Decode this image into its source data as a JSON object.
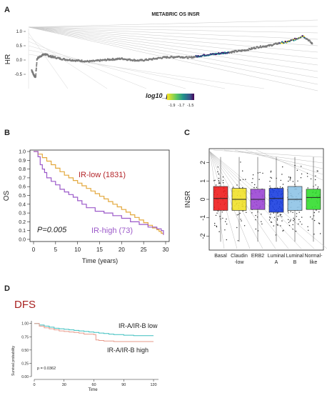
{
  "panel_labels": {
    "a": "A",
    "b": "B",
    "c": "C",
    "d": "D"
  },
  "chart_data": [
    {
      "panel": "A",
      "type": "scatter",
      "title": "METABRIC OS INSR",
      "xlabel": "",
      "ylabel": "HR",
      "y_ticks": [
        "-0.5",
        "0.0",
        "0.5",
        "1.0"
      ],
      "ylim": [
        -0.85,
        1.35
      ],
      "legend_title": "log10_p",
      "legend_ticks": [
        "-1.9",
        "-1.7",
        "-1.5"
      ],
      "colors": {
        "grey": "#7a7a7a",
        "low_p": "#3b0f70",
        "mid_p": "#21908d",
        "high_p": "#fde725"
      },
      "series": [
        {
          "x": [
            0.1,
            0.5,
            1,
            1.5,
            2,
            3,
            4,
            5,
            6,
            7,
            8,
            10,
            12,
            14,
            16,
            18,
            20,
            22,
            24,
            26,
            28,
            30,
            32,
            34,
            36,
            38,
            40,
            42,
            44,
            46,
            48,
            50,
            52,
            54,
            56,
            58,
            60,
            62,
            64,
            66,
            68,
            70,
            72,
            74,
            76,
            78,
            80,
            82,
            84,
            86,
            88,
            90,
            92,
            94,
            96,
            98,
            99.5
          ],
          "y": [
            -0.35,
            -0.45,
            -0.55,
            -0.6,
            0.05,
            0.12,
            0.18,
            0.2,
            0.15,
            0.12,
            0.1,
            0.05,
            0.02,
            0.0,
            -0.02,
            -0.03,
            -0.05,
            -0.04,
            -0.02,
            0.0,
            0.02,
            0.03,
            0.05,
            0.02,
            0.0,
            -0.02,
            0.0,
            0.02,
            0.05,
            0.08,
            0.1,
            0.1,
            0.12,
            0.1,
            0.08,
            0.12,
            0.15,
            0.18,
            0.2,
            0.22,
            0.25,
            0.27,
            0.3,
            0.32,
            0.35,
            0.4,
            0.45,
            0.48,
            0.5,
            0.55,
            0.6,
            0.62,
            0.68,
            0.75,
            0.85,
            0.7,
            0.55
          ]
        }
      ]
    },
    {
      "panel": "B",
      "type": "line",
      "title": "",
      "xlabel": "Time (years)",
      "ylabel": "OS",
      "x_ticks": [
        "0",
        "5",
        "10",
        "15",
        "20",
        "25",
        "30"
      ],
      "y_ticks": [
        "0.0",
        "0.1",
        "0.2",
        "0.3",
        "0.4",
        "0.5",
        "0.6",
        "0.7",
        "0.8",
        "0.9",
        "1.0"
      ],
      "xlim": [
        0,
        30
      ],
      "ylim": [
        0,
        1
      ],
      "annotations": {
        "p_value": "P=0.005",
        "low_label": "IR-low (1831)",
        "high_label": "IR-high (73)"
      },
      "colors": {
        "low": "#e3a83c",
        "high": "#9b59c9",
        "low_text": "#b4262a",
        "high_text": "#9b59c9"
      },
      "series": [
        {
          "name": "IR-low (1831)",
          "x": [
            0,
            1,
            2,
            3,
            4,
            5,
            6,
            7,
            8,
            9,
            10,
            11,
            12,
            13,
            14,
            15,
            16,
            17,
            18,
            19,
            20,
            21,
            22,
            23,
            24,
            25,
            26,
            27,
            28,
            28.5,
            29,
            29.5
          ],
          "y": [
            1.0,
            0.97,
            0.93,
            0.89,
            0.85,
            0.81,
            0.77,
            0.73,
            0.7,
            0.67,
            0.64,
            0.61,
            0.58,
            0.55,
            0.52,
            0.49,
            0.46,
            0.43,
            0.4,
            0.37,
            0.34,
            0.31,
            0.28,
            0.25,
            0.22,
            0.19,
            0.16,
            0.13,
            0.11,
            0.09,
            0.07,
            0.05
          ]
        },
        {
          "name": "IR-high (73)",
          "x": [
            0,
            1,
            1.5,
            2,
            2.5,
            3,
            4,
            5,
            6,
            7,
            8,
            9,
            10,
            11,
            12,
            14,
            16,
            18,
            20,
            22,
            24,
            26,
            28,
            29,
            29.5
          ],
          "y": [
            1.0,
            0.94,
            0.85,
            0.8,
            0.76,
            0.7,
            0.66,
            0.62,
            0.57,
            0.54,
            0.51,
            0.48,
            0.44,
            0.4,
            0.36,
            0.32,
            0.3,
            0.27,
            0.24,
            0.2,
            0.17,
            0.14,
            0.12,
            0.1,
            0.05
          ]
        }
      ]
    },
    {
      "panel": "C",
      "type": "box",
      "title": "",
      "xlabel": "",
      "ylabel": "INSR",
      "y_ticks": [
        "-2",
        "-1",
        "0",
        "1",
        "2"
      ],
      "ylim": [
        -2.6,
        2.6
      ],
      "categories": [
        "Basal",
        "Claudin\n-low",
        "ERB2",
        "Luminal\nA",
        "Luminal\nB",
        "Normal-\nlike"
      ],
      "colors": [
        "#ee1c1c",
        "#f1e12a",
        "#9b46d4",
        "#1a3ee0",
        "#8ec3e6",
        "#33dd2f"
      ],
      "boxes": [
        {
          "q1": -0.6,
          "median": 0.05,
          "q3": 0.7
        },
        {
          "q1": -0.6,
          "median": 0.0,
          "q3": 0.6
        },
        {
          "q1": -0.55,
          "median": 0.0,
          "q3": 0.55
        },
        {
          "q1": -0.7,
          "median": 0.05,
          "q3": 0.6
        },
        {
          "q1": -0.6,
          "median": 0.0,
          "q3": 0.7
        },
        {
          "q1": -0.55,
          "median": 0.1,
          "q3": 0.55
        }
      ]
    },
    {
      "panel": "D",
      "type": "line",
      "title": "DFS",
      "xlabel": "Time",
      "ylabel": "Survival probability",
      "x_ticks": [
        "0",
        "30",
        "60",
        "90",
        "120"
      ],
      "y_ticks": [
        "0.00",
        "0.25",
        "0.50",
        "0.75",
        "1.00"
      ],
      "xlim": [
        0,
        125
      ],
      "ylim": [
        0,
        1.05
      ],
      "annotations": {
        "p_value": "p = 0.0362",
        "low_label": "IR-A/IR-B low",
        "high_label": "IR-A/IR-B high"
      },
      "colors": {
        "low": "#3bbfbf",
        "high": "#e79a8a",
        "title": "#a8201f"
      },
      "series": [
        {
          "name": "IR-A/IR-B low",
          "x": [
            0,
            5,
            10,
            15,
            20,
            25,
            30,
            35,
            40,
            45,
            50,
            55,
            60,
            65,
            70,
            75,
            80,
            85,
            90,
            95,
            100,
            105,
            110,
            115,
            120
          ],
          "y": [
            1.0,
            0.97,
            0.95,
            0.93,
            0.91,
            0.9,
            0.89,
            0.88,
            0.87,
            0.86,
            0.85,
            0.84,
            0.83,
            0.82,
            0.81,
            0.8,
            0.79,
            0.79,
            0.78,
            0.78,
            0.77,
            0.77,
            0.77,
            0.77,
            0.77
          ]
        },
        {
          "name": "IR-A/IR-B high",
          "x": [
            0,
            5,
            10,
            15,
            20,
            25,
            30,
            35,
            40,
            45,
            50,
            55,
            60,
            62,
            65,
            70,
            75,
            80,
            90,
            100,
            110,
            120
          ],
          "y": [
            1.0,
            0.95,
            0.92,
            0.9,
            0.88,
            0.86,
            0.85,
            0.84,
            0.83,
            0.82,
            0.8,
            0.8,
            0.79,
            0.69,
            0.68,
            0.67,
            0.67,
            0.66,
            0.66,
            0.66,
            0.66,
            0.66
          ]
        }
      ]
    }
  ]
}
